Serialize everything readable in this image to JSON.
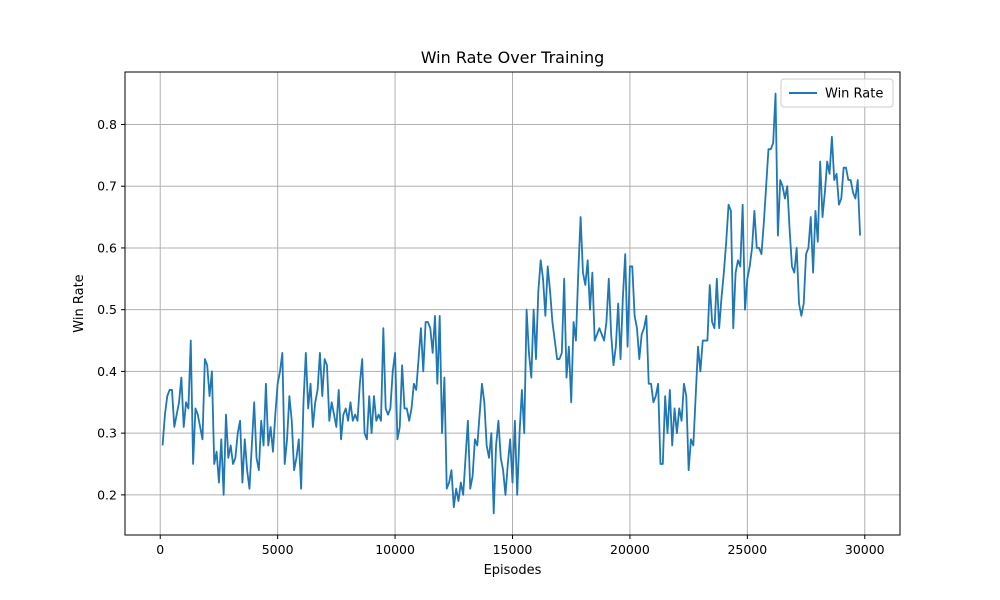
{
  "chart_data": {
    "type": "line",
    "title": "Win Rate Over Training",
    "xlabel": "Episodes",
    "ylabel": "Win Rate",
    "xlim": [
      -1500,
      31500
    ],
    "ylim": [
      0.135,
      0.885
    ],
    "xticks": [
      0,
      5000,
      10000,
      15000,
      20000,
      25000,
      30000
    ],
    "yticks": [
      0.2,
      0.3,
      0.4,
      0.5,
      0.6,
      0.7,
      0.8
    ],
    "grid": true,
    "legend_position": "top-right",
    "series": [
      {
        "name": "Win Rate",
        "color": "#1f77b4",
        "x_start": 100,
        "x_step": 100,
        "values": [
          0.28,
          0.33,
          0.36,
          0.37,
          0.37,
          0.31,
          0.33,
          0.35,
          0.39,
          0.31,
          0.35,
          0.34,
          0.45,
          0.25,
          0.34,
          0.33,
          0.31,
          0.29,
          0.42,
          0.41,
          0.36,
          0.4,
          0.25,
          0.27,
          0.22,
          0.29,
          0.2,
          0.33,
          0.26,
          0.28,
          0.25,
          0.26,
          0.3,
          0.32,
          0.22,
          0.29,
          0.24,
          0.21,
          0.28,
          0.35,
          0.26,
          0.24,
          0.32,
          0.28,
          0.38,
          0.28,
          0.31,
          0.27,
          0.33,
          0.38,
          0.4,
          0.43,
          0.25,
          0.29,
          0.36,
          0.32,
          0.24,
          0.26,
          0.29,
          0.21,
          0.35,
          0.43,
          0.34,
          0.38,
          0.31,
          0.35,
          0.37,
          0.43,
          0.36,
          0.42,
          0.41,
          0.32,
          0.35,
          0.33,
          0.31,
          0.37,
          0.29,
          0.33,
          0.34,
          0.32,
          0.35,
          0.32,
          0.33,
          0.32,
          0.38,
          0.42,
          0.3,
          0.29,
          0.36,
          0.3,
          0.36,
          0.32,
          0.33,
          0.32,
          0.47,
          0.34,
          0.33,
          0.34,
          0.4,
          0.43,
          0.29,
          0.31,
          0.41,
          0.34,
          0.34,
          0.32,
          0.34,
          0.38,
          0.37,
          0.42,
          0.47,
          0.4,
          0.48,
          0.48,
          0.47,
          0.43,
          0.49,
          0.38,
          0.49,
          0.3,
          0.39,
          0.21,
          0.22,
          0.24,
          0.18,
          0.21,
          0.19,
          0.22,
          0.2,
          0.26,
          0.32,
          0.21,
          0.23,
          0.29,
          0.28,
          0.33,
          0.38,
          0.35,
          0.28,
          0.26,
          0.3,
          0.17,
          0.28,
          0.32,
          0.26,
          0.24,
          0.2,
          0.25,
          0.29,
          0.22,
          0.32,
          0.2,
          0.3,
          0.37,
          0.3,
          0.5,
          0.43,
          0.39,
          0.5,
          0.42,
          0.53,
          0.58,
          0.55,
          0.49,
          0.57,
          0.53,
          0.48,
          0.45,
          0.42,
          0.42,
          0.43,
          0.55,
          0.39,
          0.44,
          0.35,
          0.48,
          0.45,
          0.56,
          0.65,
          0.56,
          0.54,
          0.58,
          0.5,
          0.56,
          0.45,
          0.46,
          0.47,
          0.46,
          0.45,
          0.48,
          0.55,
          0.46,
          0.41,
          0.44,
          0.51,
          0.42,
          0.52,
          0.59,
          0.44,
          0.57,
          0.57,
          0.49,
          0.47,
          0.42,
          0.46,
          0.47,
          0.49,
          0.38,
          0.38,
          0.35,
          0.36,
          0.38,
          0.25,
          0.25,
          0.36,
          0.3,
          0.37,
          0.28,
          0.34,
          0.3,
          0.34,
          0.32,
          0.38,
          0.36,
          0.24,
          0.29,
          0.28,
          0.36,
          0.44,
          0.4,
          0.45,
          0.45,
          0.45,
          0.54,
          0.48,
          0.47,
          0.55,
          0.47,
          0.52,
          0.56,
          0.61,
          0.67,
          0.66,
          0.47,
          0.56,
          0.58,
          0.57,
          0.67,
          0.5,
          0.55,
          0.57,
          0.6,
          0.66,
          0.6,
          0.6,
          0.59,
          0.64,
          0.7,
          0.76,
          0.76,
          0.77,
          0.85,
          0.62,
          0.71,
          0.7,
          0.68,
          0.7,
          0.63,
          0.57,
          0.56,
          0.6,
          0.51,
          0.49,
          0.51,
          0.59,
          0.6,
          0.65,
          0.56,
          0.66,
          0.61,
          0.74,
          0.65,
          0.69,
          0.74,
          0.72,
          0.78,
          0.71,
          0.72,
          0.67,
          0.68,
          0.73,
          0.73,
          0.71,
          0.71,
          0.69,
          0.68,
          0.71,
          0.62
        ]
      }
    ]
  }
}
